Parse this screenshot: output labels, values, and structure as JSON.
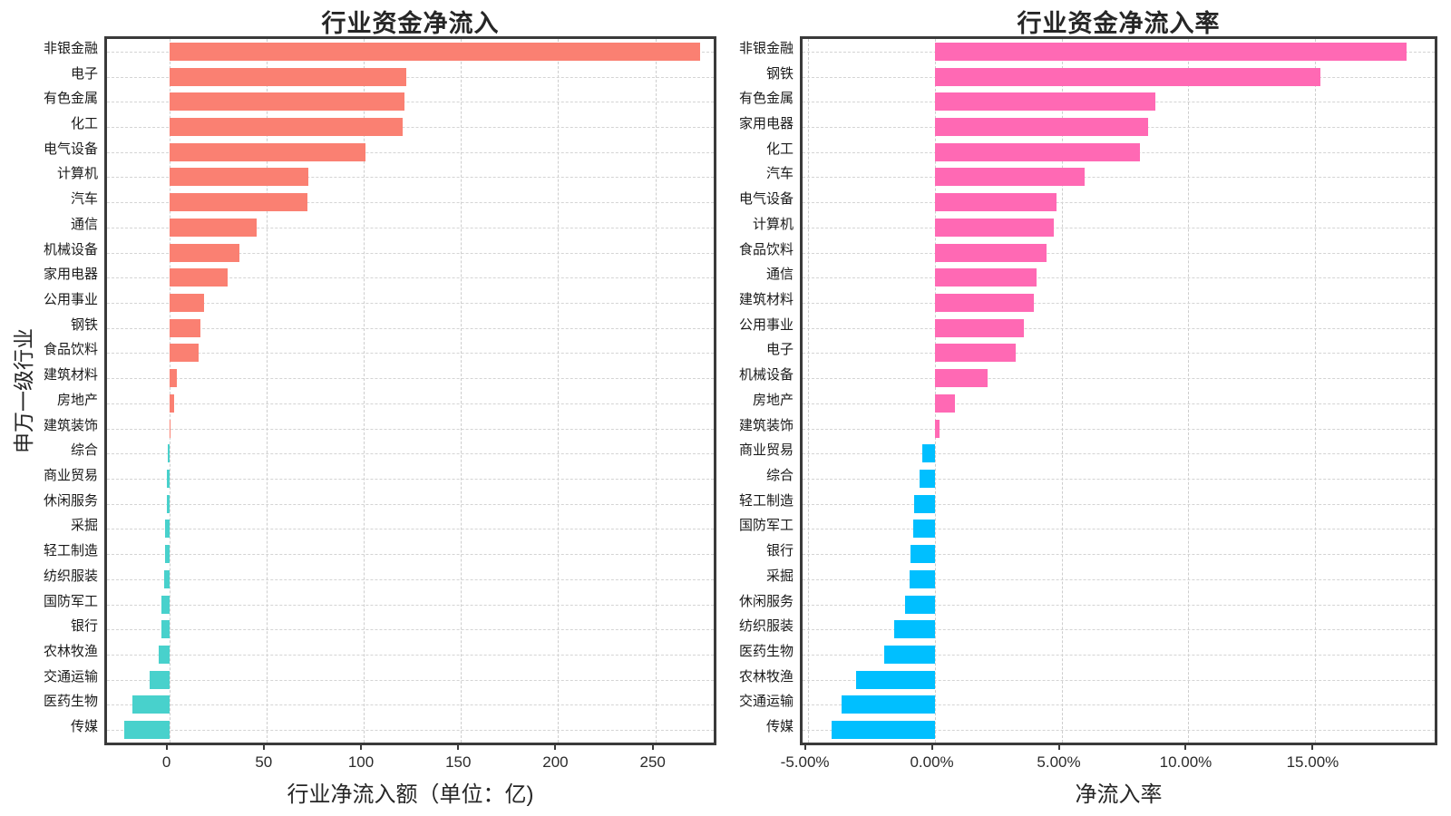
{
  "page": {
    "background": "#ffffff"
  },
  "chart_data": [
    {
      "type": "bar",
      "orientation": "horizontal",
      "title": "行业资金净流入",
      "xlabel": "行业净流入额（单位：亿)",
      "ylabel": "申万一级行业",
      "grid": true,
      "xlim": [
        -32,
        280
      ],
      "xticks": [
        0,
        50,
        100,
        150,
        200,
        250
      ],
      "xtick_labels": [
        "0",
        "50",
        "100",
        "150",
        "200",
        "250"
      ],
      "positive_color": "#FA8072",
      "negative_color": "#48D1CC",
      "categories": [
        "非银金融",
        "电子",
        "有色金属",
        "化工",
        "电气设备",
        "计算机",
        "汽车",
        "通信",
        "机械设备",
        "家用电器",
        "公用事业",
        "钢铁",
        "食品饮料",
        "建筑材料",
        "房地产",
        "建筑装饰",
        "综合",
        "商业贸易",
        "休闲服务",
        "采掘",
        "轻工制造",
        "纺织服装",
        "国防军工",
        "银行",
        "农林牧渔",
        "交通运输",
        "医药生物",
        "传媒"
      ],
      "values": [
        273,
        122,
        121,
        120,
        101,
        71.5,
        71,
        45,
        36,
        30,
        18,
        16,
        15,
        4,
        2.3,
        0.8,
        -0.7,
        -1.3,
        -1.4,
        -2.1,
        -2.3,
        -2.4,
        -3.8,
        -4.1,
        -5.5,
        -10,
        -19,
        -23
      ]
    },
    {
      "type": "bar",
      "orientation": "horizontal",
      "title": "行业资金净流入率",
      "xlabel": "净流入率",
      "ylabel": "",
      "grid": true,
      "xlim": [
        -5.2,
        19.7
      ],
      "xticks": [
        -5,
        0,
        5,
        10,
        15
      ],
      "xtick_labels": [
        "-5.00%",
        "0.00%",
        "5.00%",
        "10.00%",
        "15.00%"
      ],
      "positive_color": "#FF69B4",
      "negative_color": "#00BFFF",
      "categories": [
        "非银金融",
        "钢铁",
        "有色金属",
        "家用电器",
        "化工",
        "汽车",
        "电气设备",
        "计算机",
        "食品饮料",
        "通信",
        "建筑材料",
        "公用事业",
        "电子",
        "机械设备",
        "房地产",
        "建筑装饰",
        "商业贸易",
        "综合",
        "轻工制造",
        "国防军工",
        "银行",
        "采掘",
        "休闲服务",
        "纺织服装",
        "医药生物",
        "农林牧渔",
        "交通运输",
        "传媒"
      ],
      "values": [
        18.6,
        15.2,
        8.7,
        8.4,
        8.1,
        5.9,
        4.8,
        4.7,
        4.4,
        4.0,
        3.9,
        3.5,
        3.2,
        2.1,
        0.8,
        0.2,
        -0.5,
        -0.6,
        -0.8,
        -0.85,
        -0.95,
        -1.0,
        -1.15,
        -1.6,
        -2.0,
        -3.1,
        -3.65,
        -4.05
      ]
    }
  ]
}
